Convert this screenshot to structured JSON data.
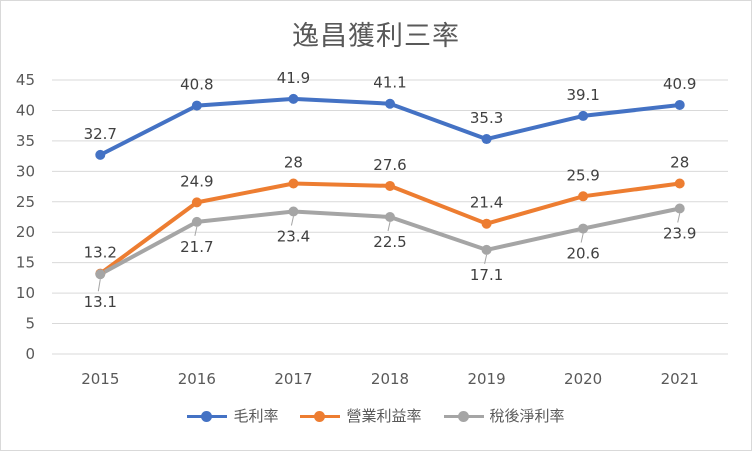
{
  "chart_data": {
    "type": "line",
    "title": "逸昌獲利三率",
    "categories": [
      "2015",
      "2016",
      "2017",
      "2018",
      "2019",
      "2020",
      "2021"
    ],
    "ylim": [
      0,
      45
    ],
    "yticks": [
      "0",
      "5",
      "10",
      "15",
      "20",
      "25",
      "30",
      "35",
      "40",
      "45"
    ],
    "grid": true,
    "legend_position": "bottom",
    "series": [
      {
        "name": "毛利率",
        "color": "#4472c4",
        "values": [
          32.7,
          40.8,
          41.9,
          41.1,
          35.3,
          39.1,
          40.9
        ],
        "labels": [
          "32.7",
          "40.8",
          "41.9",
          "41.1",
          "35.3",
          "39.1",
          "40.9"
        ]
      },
      {
        "name": "營業利益率",
        "color": "#ed7d31",
        "values": [
          13.2,
          24.9,
          28,
          27.6,
          21.4,
          25.9,
          28
        ],
        "labels": [
          "13.2",
          "24.9",
          "28",
          "27.6",
          "21.4",
          "25.9",
          "28"
        ]
      },
      {
        "name": "稅後淨利率",
        "color": "#a5a5a5",
        "values": [
          13.1,
          21.7,
          23.4,
          22.5,
          17.1,
          20.6,
          23.9
        ],
        "labels": [
          "13.1",
          "21.7",
          "23.4",
          "22.5",
          "17.1",
          "20.6",
          "23.9"
        ]
      }
    ]
  }
}
